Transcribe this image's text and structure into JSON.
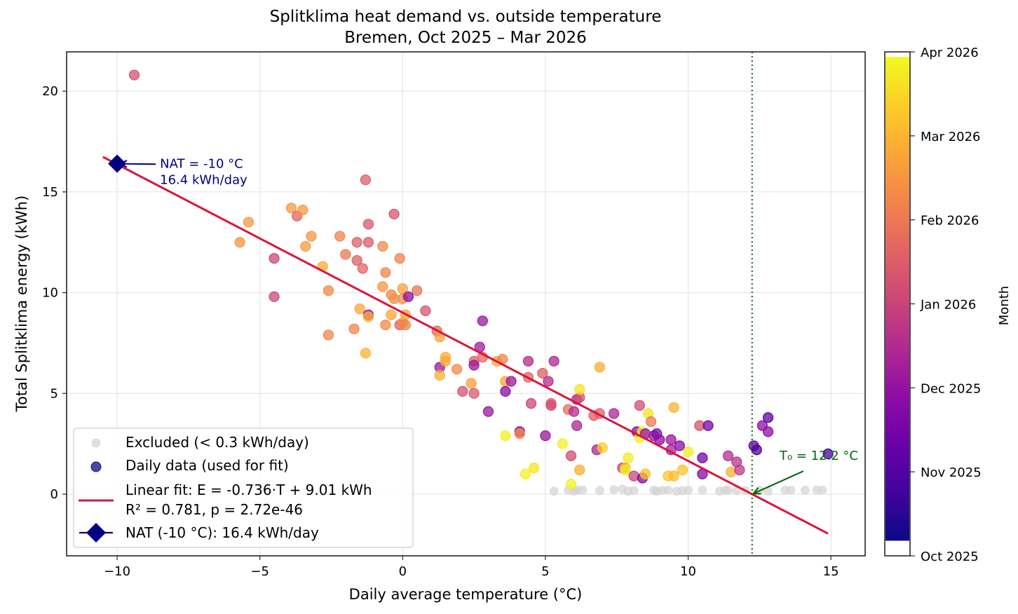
{
  "chart_data": {
    "type": "scatter",
    "title": "Splitklima heat demand vs. outside temperature",
    "subtitle": "Bremen, Oct 2025 – Mar 2026",
    "xlabel": "Daily average temperature (°C)",
    "ylabel": "Total Splitklima energy (kWh)",
    "xlim": [
      -11.77,
      16.2
    ],
    "ylim": [
      -3.06,
      21.95
    ],
    "xticks": [
      -10,
      -5,
      0,
      5,
      10,
      15
    ],
    "xtick_labels": [
      "−10",
      "−5",
      "0",
      "5",
      "10",
      "15"
    ],
    "yticks": [
      0,
      5,
      10,
      15,
      20
    ],
    "ytick_labels": [
      "0",
      "5",
      "10",
      "15",
      "20"
    ],
    "grid": true,
    "legend_position": "lower-left",
    "colorbar": {
      "label": "Month",
      "colormap": "plasma",
      "range": [
        0,
        6
      ],
      "ticks": [
        0,
        1,
        2,
        3,
        4,
        5,
        6
      ],
      "tick_labels": [
        "Oct 2025",
        "Nov 2025",
        "Dec 2025",
        "Jan 2026",
        "Feb 2026",
        "Mar 2026",
        "Apr 2026"
      ],
      "data_extent": [
        0.18,
        5.94
      ]
    },
    "legend": [
      {
        "label": "Excluded (< 0.3 kWh/day)",
        "marker": "circle",
        "color": "#d3d3d3"
      },
      {
        "label": "Daily data (used for fit)",
        "marker": "circle",
        "color": "#1a1a8a"
      },
      {
        "label": "Linear fit: E = -0.736·T + 9.01 kWh",
        "label2": "R² = 0.781,  p = 2.72e-46",
        "marker": "line",
        "color": "#dc143c"
      },
      {
        "label": "NAT (-10 °C): 16.4 kWh/day",
        "marker": "diamond-line",
        "color": "#000080"
      }
    ],
    "fit": {
      "slope": -0.736,
      "intercept": 9.01,
      "x_range": [
        -10.5,
        14.9
      ],
      "r2": 0.781,
      "p": "2.72e-46",
      "color": "#dc143c"
    },
    "nat": {
      "x": -10,
      "y": 16.4,
      "color": "#000080"
    },
    "t0": {
      "x": 12.24,
      "color": "#006400"
    },
    "annotations": [
      {
        "id": "nat",
        "lines": [
          "NAT = -10 °C",
          "16.4 kWh/day"
        ],
        "text_at": [
          -8.5,
          16.2
        ],
        "arrow_to": [
          -10,
          16.4
        ],
        "color": "#000080"
      },
      {
        "id": "t0",
        "lines": [
          "T₀ = 12.2 °C"
        ],
        "text_at": [
          13.2,
          1.7
        ],
        "arrow_to": [
          12.24,
          0.0
        ],
        "color": "#006400"
      }
    ],
    "series": [
      {
        "name": "Excluded (< 0.3 kWh/day)",
        "color": "#d3d3d3",
        "points": [
          [
            5.3,
            0.15
          ],
          [
            5.8,
            0.2
          ],
          [
            6.0,
            0.15
          ],
          [
            6.1,
            0.2
          ],
          [
            6.3,
            0.2
          ],
          [
            6.9,
            0.18
          ],
          [
            7.4,
            0.22
          ],
          [
            7.7,
            0.25
          ],
          [
            7.9,
            0.15
          ],
          [
            8.1,
            0.18
          ],
          [
            8.9,
            0.15
          ],
          [
            9.1,
            0.2
          ],
          [
            9.3,
            0.2
          ],
          [
            9.6,
            0.15
          ],
          [
            9.8,
            0.18
          ],
          [
            10.0,
            0.2
          ],
          [
            10.5,
            0.2
          ],
          [
            11.1,
            0.15
          ],
          [
            11.3,
            0.2
          ],
          [
            11.7,
            0.18
          ],
          [
            12.0,
            0.18
          ],
          [
            12.5,
            0.2
          ],
          [
            12.8,
            0.15
          ],
          [
            13.4,
            0.2
          ],
          [
            13.6,
            0.2
          ],
          [
            14.1,
            0.2
          ],
          [
            14.5,
            0.2
          ],
          [
            14.7,
            0.2
          ],
          [
            11.4,
            0.2
          ],
          [
            8.8,
            0.2
          ]
        ]
      },
      {
        "name": "Daily data (used for fit)",
        "points": [
          [
            -9.4,
            20.8,
            3.2
          ],
          [
            -5.7,
            12.5,
            4.5
          ],
          [
            -5.4,
            13.5,
            4.55
          ],
          [
            -4.5,
            11.7,
            3.0
          ],
          [
            -4.5,
            9.8,
            3.0
          ],
          [
            -3.9,
            14.2,
            4.55
          ],
          [
            -3.7,
            13.8,
            3.6
          ],
          [
            -3.5,
            14.1,
            4.5
          ],
          [
            -3.4,
            12.3,
            4.6
          ],
          [
            -3.2,
            12.8,
            4.5
          ],
          [
            -2.8,
            11.3,
            4.9
          ],
          [
            -2.6,
            10.1,
            4.3
          ],
          [
            -2.6,
            7.9,
            4.2
          ],
          [
            -2.2,
            12.8,
            4.2
          ],
          [
            -2.0,
            11.9,
            4.0
          ],
          [
            -1.7,
            8.2,
            4.2
          ],
          [
            -1.6,
            12.5,
            3.5
          ],
          [
            -1.6,
            11.6,
            3.5
          ],
          [
            -1.5,
            9.2,
            4.8
          ],
          [
            -1.4,
            11.2,
            3.6
          ],
          [
            -1.3,
            15.6,
            3.5
          ],
          [
            -1.3,
            7.0,
            5.0
          ],
          [
            -1.2,
            13.4,
            3.4
          ],
          [
            -1.2,
            12.5,
            3.4
          ],
          [
            -1.2,
            8.9,
            2.0
          ],
          [
            -1.2,
            8.8,
            4.9
          ],
          [
            -0.7,
            10.3,
            4.5
          ],
          [
            -0.7,
            12.3,
            4.3
          ],
          [
            -0.6,
            11.0,
            4.2
          ],
          [
            -0.6,
            8.4,
            4.3
          ],
          [
            -0.4,
            9.9,
            4.3
          ],
          [
            -0.4,
            8.9,
            4.8
          ],
          [
            -0.3,
            9.7,
            4.4
          ],
          [
            -0.3,
            13.9,
            3.3
          ],
          [
            -0.1,
            11.7,
            4.2
          ],
          [
            -0.1,
            8.4,
            3.5
          ],
          [
            0.0,
            10.2,
            4.7
          ],
          [
            0.0,
            9.7,
            4.4
          ],
          [
            0.0,
            8.5,
            4.3
          ],
          [
            0.1,
            8.9,
            4.8
          ],
          [
            0.1,
            8.4,
            4.2
          ],
          [
            0.2,
            9.8,
            1.8
          ],
          [
            0.5,
            10.1,
            3.9
          ],
          [
            0.8,
            9.1,
            3.3
          ],
          [
            1.2,
            8.1,
            3.7
          ],
          [
            1.3,
            7.8,
            4.7
          ],
          [
            1.3,
            6.3,
            2.0
          ],
          [
            1.3,
            5.9,
            4.9
          ],
          [
            1.5,
            6.8,
            4.9
          ],
          [
            1.5,
            6.6,
            4.8
          ],
          [
            1.9,
            6.2,
            4.3
          ],
          [
            2.1,
            5.1,
            3.2
          ],
          [
            2.4,
            5.5,
            4.7
          ],
          [
            2.5,
            5.0,
            3.4
          ],
          [
            2.5,
            6.6,
            3.5
          ],
          [
            2.5,
            6.4,
            2.0
          ],
          [
            2.7,
            7.3,
            2.1
          ],
          [
            2.8,
            6.8,
            3.6
          ],
          [
            2.8,
            8.6,
            2.0
          ],
          [
            3.0,
            4.1,
            2.0
          ],
          [
            3.3,
            6.6,
            4.8
          ],
          [
            3.5,
            6.7,
            4.2
          ],
          [
            3.6,
            5.6,
            4.8
          ],
          [
            3.6,
            5.1,
            1.7
          ],
          [
            3.6,
            2.9,
            5.9
          ],
          [
            3.8,
            5.6,
            2.0
          ],
          [
            4.1,
            3.1,
            1.7
          ],
          [
            4.1,
            3.0,
            4.3
          ],
          [
            4.3,
            1.0,
            5.9
          ],
          [
            4.4,
            6.6,
            2.4
          ],
          [
            4.4,
            5.8,
            3.6
          ],
          [
            4.5,
            4.5,
            3.0
          ],
          [
            4.6,
            1.3,
            5.7
          ],
          [
            4.9,
            6.0,
            3.5
          ],
          [
            5.0,
            2.9,
            2.0
          ],
          [
            5.1,
            5.6,
            2.4
          ],
          [
            5.2,
            4.5,
            3.5
          ],
          [
            5.2,
            4.4,
            3.1
          ],
          [
            5.3,
            6.6,
            2.3
          ],
          [
            5.6,
            2.5,
            5.9
          ],
          [
            5.8,
            4.2,
            3.8
          ],
          [
            5.9,
            1.9,
            3.1
          ],
          [
            5.9,
            0.5,
            5.9
          ],
          [
            6.0,
            4.1,
            2.4
          ],
          [
            6.1,
            4.7,
            2.3
          ],
          [
            6.1,
            3.4,
            2.3
          ],
          [
            6.2,
            4.8,
            3.2
          ],
          [
            6.2,
            5.2,
            5.7
          ],
          [
            6.2,
            1.2,
            4.9
          ],
          [
            6.7,
            3.9,
            3.5
          ],
          [
            6.8,
            2.2,
            2.3
          ],
          [
            6.9,
            6.3,
            4.9
          ],
          [
            6.9,
            4.0,
            3.5
          ],
          [
            7.0,
            2.3,
            5.4
          ],
          [
            7.4,
            4.0,
            2.3
          ],
          [
            7.7,
            1.3,
            2.9
          ],
          [
            7.8,
            1.3,
            5.0
          ],
          [
            7.8,
            1.2,
            5.8
          ],
          [
            7.9,
            1.8,
            5.8
          ],
          [
            8.1,
            0.9,
            3.0
          ],
          [
            8.2,
            3.1,
            1.8
          ],
          [
            8.3,
            4.4,
            3.1
          ],
          [
            8.3,
            2.8,
            5.8
          ],
          [
            8.4,
            3.1,
            5.8
          ],
          [
            8.4,
            0.8,
            1.6
          ],
          [
            8.5,
            3.0,
            1.9
          ],
          [
            8.5,
            1.0,
            5.2
          ],
          [
            8.6,
            4.0,
            5.7
          ],
          [
            8.7,
            3.6,
            4.0
          ],
          [
            8.8,
            2.9,
            2.0
          ],
          [
            8.9,
            3.0,
            1.6
          ],
          [
            9.0,
            2.7,
            1.8
          ],
          [
            9.3,
            0.9,
            5.3
          ],
          [
            9.4,
            2.2,
            2.2
          ],
          [
            9.4,
            2.7,
            2.0
          ],
          [
            9.5,
            4.3,
            5.0
          ],
          [
            9.5,
            0.9,
            5.1
          ],
          [
            9.7,
            2.4,
            1.7
          ],
          [
            9.8,
            1.2,
            5.2
          ],
          [
            10.0,
            2.1,
            5.8
          ],
          [
            10.4,
            3.4,
            3.3
          ],
          [
            10.5,
            1.8,
            1.4
          ],
          [
            10.5,
            1.0,
            1.6
          ],
          [
            10.7,
            3.4,
            1.4
          ],
          [
            11.4,
            1.9,
            2.5
          ],
          [
            11.5,
            1.1,
            5.0
          ],
          [
            11.7,
            1.6,
            2.6
          ],
          [
            11.8,
            1.2,
            2.7
          ],
          [
            12.3,
            2.4,
            1.2
          ],
          [
            12.4,
            2.2,
            0.7
          ],
          [
            12.6,
            3.4,
            1.8
          ],
          [
            12.8,
            3.8,
            1.0
          ],
          [
            12.8,
            3.1,
            1.8
          ],
          [
            14.9,
            2.0,
            0.6
          ]
        ]
      }
    ]
  }
}
